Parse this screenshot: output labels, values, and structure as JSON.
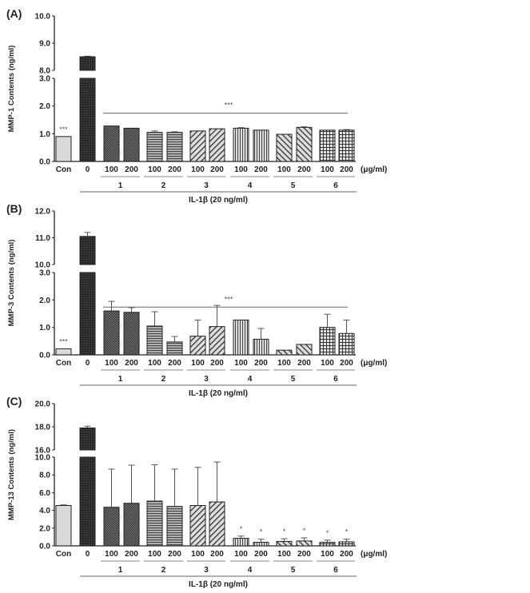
{
  "chart_data": [
    {
      "panel": "(A)",
      "type": "bar",
      "ylabel": "MMP-1 Contents (ng/ml)",
      "xlabel": "IL-1β (20 ng/ml)",
      "dose_unit": "(μg/ml)",
      "categories": [
        "Con",
        "0",
        "100",
        "200",
        "100",
        "200",
        "100",
        "200",
        "100",
        "200",
        "100",
        "200",
        "100",
        "200"
      ],
      "group_labels": [
        "1",
        "2",
        "3",
        "4",
        "5",
        "6"
      ],
      "values": [
        0.9,
        8.5,
        1.28,
        1.2,
        1.05,
        1.05,
        1.1,
        1.18,
        1.2,
        1.13,
        0.98,
        1.23,
        1.13,
        1.13
      ],
      "error_upper": [
        0.9,
        8.52,
        1.28,
        1.2,
        1.1,
        1.07,
        1.1,
        1.18,
        1.22,
        1.13,
        0.98,
        1.25,
        1.13,
        1.15
      ],
      "y_break": {
        "lower": [
          0,
          3
        ],
        "upper": [
          8,
          10
        ]
      },
      "yticks_lower": [
        "0.0",
        "1.0",
        "2.0",
        "3.0"
      ],
      "yticks_upper": [
        "8.0",
        "9.0",
        "10.0"
      ],
      "bar_annotations": [
        {
          "bar": 0,
          "text": "***"
        }
      ],
      "bracket": {
        "text": "***",
        "from_bar": 2,
        "to_bar": 13
      }
    },
    {
      "panel": "(B)",
      "type": "bar",
      "ylabel": "MMP-3 Contents (ng/ml)",
      "xlabel": "IL-1β (20 ng/ml)",
      "dose_unit": "(μg/ml)",
      "categories": [
        "Con",
        "0",
        "100",
        "200",
        "100",
        "200",
        "100",
        "200",
        "100",
        "200",
        "100",
        "200",
        "100",
        "200"
      ],
      "group_labels": [
        "1",
        "2",
        "3",
        "4",
        "5",
        "6"
      ],
      "values": [
        0.22,
        11.05,
        1.6,
        1.55,
        1.05,
        0.47,
        0.68,
        1.03,
        1.27,
        0.57,
        0.17,
        0.38,
        1.0,
        0.78
      ],
      "error_upper": [
        0.22,
        11.2,
        1.95,
        1.72,
        1.57,
        0.67,
        1.27,
        1.8,
        1.27,
        0.96,
        0.17,
        0.38,
        1.48,
        1.27
      ],
      "y_break": {
        "lower": [
          0,
          3
        ],
        "upper": [
          10,
          12
        ]
      },
      "yticks_lower": [
        "0.0",
        "1.0",
        "2.0",
        "3.0"
      ],
      "yticks_upper": [
        "10.0",
        "11.0",
        "12.0"
      ],
      "bar_annotations": [
        {
          "bar": 0,
          "text": "***"
        }
      ],
      "bracket": {
        "text": "***",
        "from_bar": 2,
        "to_bar": 13
      }
    },
    {
      "panel": "(C)",
      "type": "bar",
      "ylabel": "MMP-13 Contents (ng/ml)",
      "xlabel": "IL-1β (20 ng/ml)",
      "dose_unit": "(μg/ml)",
      "categories": [
        "Con",
        "0",
        "100",
        "200",
        "100",
        "200",
        "100",
        "200",
        "100",
        "200",
        "100",
        "200",
        "100",
        "200"
      ],
      "group_labels": [
        "1",
        "2",
        "3",
        "4",
        "5",
        "6"
      ],
      "values": [
        4.55,
        17.9,
        4.35,
        4.8,
        5.05,
        4.45,
        4.55,
        4.95,
        0.85,
        0.4,
        0.5,
        0.55,
        0.4,
        0.45
      ],
      "error_upper": [
        4.62,
        18.05,
        8.65,
        9.1,
        9.15,
        8.65,
        8.85,
        9.45,
        1.1,
        0.75,
        0.8,
        0.9,
        0.65,
        0.75
      ],
      "y_break": {
        "lower": [
          0,
          10
        ],
        "upper": [
          16,
          20
        ]
      },
      "yticks_lower": [
        "0.0",
        "2.0",
        "4.0",
        "6.0",
        "8.0",
        "10.0"
      ],
      "yticks_upper": [
        "16.0",
        "18.0",
        "20.0"
      ],
      "bar_annotations": [
        {
          "bar": 8,
          "text": "*"
        },
        {
          "bar": 9,
          "text": "*"
        },
        {
          "bar": 10,
          "text": "*"
        },
        {
          "bar": 11,
          "text": "*"
        },
        {
          "bar": 12,
          "text": "*"
        },
        {
          "bar": 13,
          "text": "*"
        }
      ],
      "bracket": null
    }
  ],
  "bar_fills": [
    "light-gray",
    "dark-crosshatch",
    "dark-checker",
    "dark-checker",
    "horizontal-lines",
    "horizontal-lines",
    "diagonal-right",
    "diagonal-right",
    "vertical-lines",
    "vertical-lines",
    "diagonal-left",
    "diagonal-left",
    "grid",
    "grid"
  ],
  "colors": {
    "con": "#d9d9d9",
    "stimulated": "#222222",
    "axis": "#222222",
    "bracket": "#666666"
  }
}
